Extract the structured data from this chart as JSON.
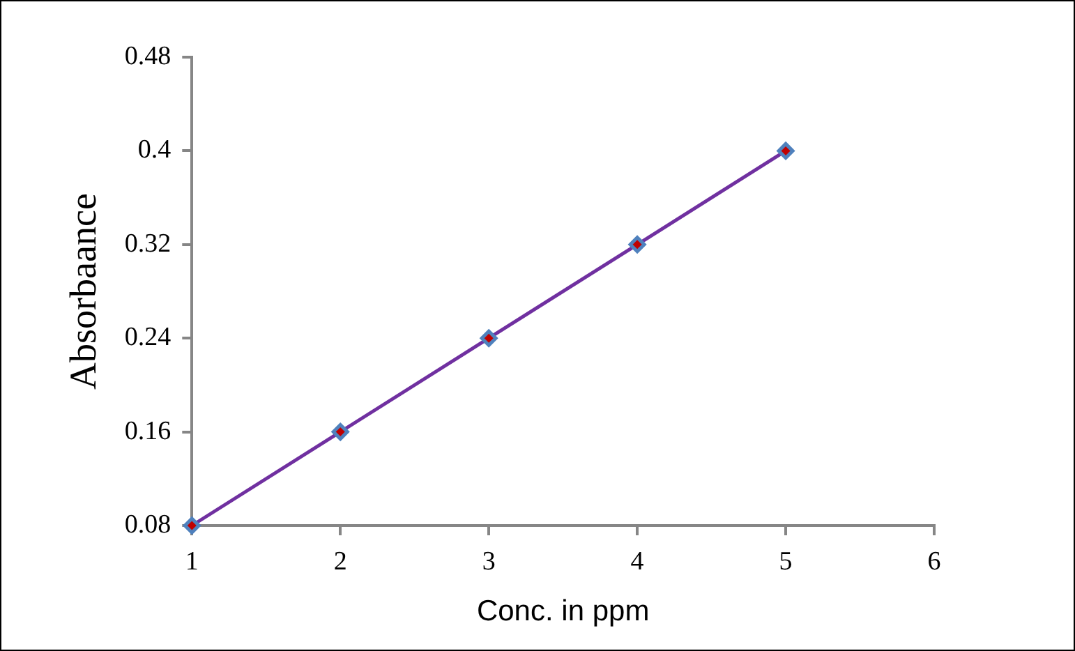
{
  "chart_data": {
    "type": "scatter",
    "xlabel": "Conc. in ppm",
    "ylabel": "Absorbaance",
    "x": [
      1,
      2,
      3,
      4,
      5
    ],
    "series": [
      {
        "type": "line",
        "color": "#7030a0",
        "values": [
          0.08,
          0.16,
          0.24,
          0.32,
          0.4
        ],
        "marker": "none"
      },
      {
        "color": "#4f81bd",
        "values": [
          0.08,
          0.16,
          0.24,
          0.32,
          0.4
        ],
        "marker": "diamond"
      }
    ],
    "xlim": [
      1,
      6
    ],
    "xticks": [
      1,
      2,
      3,
      4,
      5,
      6
    ],
    "ylim": [
      0.08,
      0.48
    ],
    "yticks": [
      0.08,
      0.16,
      0.24,
      0.32,
      0.4,
      0.48
    ],
    "grid": false,
    "legend": false
  }
}
